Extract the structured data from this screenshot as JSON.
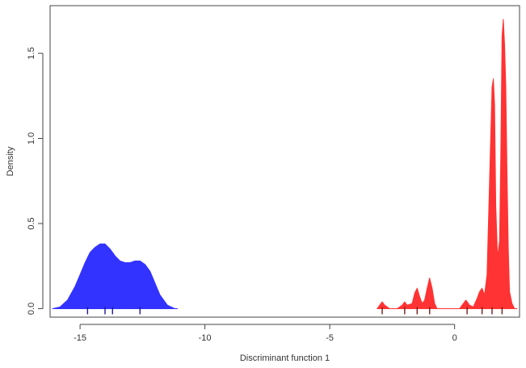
{
  "chart_data": {
    "type": "area",
    "title": "",
    "xlabel": "Discriminant function 1",
    "ylabel": "Density",
    "xlim": [
      -16.2,
      2.6
    ],
    "ylim": [
      -0.05,
      1.78
    ],
    "x_ticks": [
      -15,
      -10,
      -5,
      0
    ],
    "x_tick_labels": [
      "-15",
      "-10",
      "-5",
      "0"
    ],
    "y_ticks": [
      0.0,
      0.5,
      1.0,
      1.5
    ],
    "y_tick_labels": [
      "0.0",
      "0.5",
      "1.0",
      "1.5"
    ],
    "grid": false,
    "series": [
      {
        "color": "#3333ff",
        "x": [
          -16.1,
          -15.8,
          -15.5,
          -15.2,
          -15.0,
          -14.8,
          -14.6,
          -14.4,
          -14.2,
          -14.0,
          -13.8,
          -13.6,
          -13.4,
          -13.2,
          -13.0,
          -12.8,
          -12.6,
          -12.4,
          -12.2,
          -12.0,
          -11.8,
          -11.5,
          -11.2,
          -11.1
        ],
        "y": [
          0.0,
          0.01,
          0.05,
          0.13,
          0.2,
          0.27,
          0.33,
          0.36,
          0.38,
          0.38,
          0.35,
          0.31,
          0.28,
          0.27,
          0.27,
          0.28,
          0.28,
          0.26,
          0.22,
          0.15,
          0.08,
          0.02,
          0.0,
          0.0
        ],
        "rug": [
          -14.7,
          -14.0,
          -13.7,
          -12.6
        ]
      },
      {
        "color": "#ff3333",
        "x": [
          -3.1,
          -3.0,
          -2.9,
          -2.8,
          -2.6,
          -2.3,
          -2.1,
          -2.0,
          -1.9,
          -1.7,
          -1.6,
          -1.5,
          -1.4,
          -1.3,
          -1.2,
          -1.1,
          -1.0,
          -0.9,
          -0.8,
          -0.7,
          -0.5,
          -0.2,
          0.2,
          0.3,
          0.45,
          0.6,
          0.75,
          0.9,
          1.0,
          1.1,
          1.2,
          1.3,
          1.4,
          1.5,
          1.55,
          1.6,
          1.65,
          1.72,
          1.8,
          1.85,
          1.9,
          1.95,
          2.0,
          2.05,
          2.1,
          2.15,
          2.2,
          2.3,
          2.4,
          2.5
        ],
        "y": [
          0.0,
          0.02,
          0.04,
          0.02,
          0.0,
          0.0,
          0.02,
          0.04,
          0.02,
          0.03,
          0.09,
          0.12,
          0.07,
          0.03,
          0.05,
          0.12,
          0.18,
          0.12,
          0.03,
          0.0,
          0.0,
          0.0,
          0.0,
          0.02,
          0.05,
          0.02,
          0.01,
          0.06,
          0.1,
          0.12,
          0.08,
          0.2,
          0.75,
          1.3,
          1.35,
          1.2,
          0.6,
          0.3,
          0.4,
          0.9,
          1.6,
          1.7,
          1.55,
          1.3,
          0.8,
          0.35,
          0.1,
          0.03,
          0.0,
          0.0
        ],
        "rug": [
          -2.9,
          -2.0,
          -1.5,
          -1.0,
          0.5,
          1.1,
          1.5,
          1.9
        ]
      }
    ]
  }
}
